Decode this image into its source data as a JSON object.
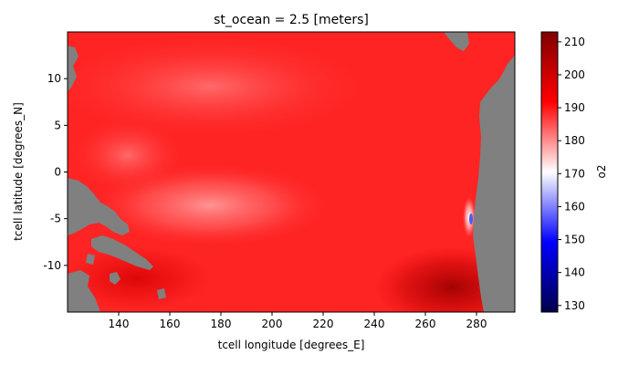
{
  "chart_data": {
    "type": "heatmap",
    "title": "st_ocean = 2.5 [meters]",
    "xlabel": "tcell longitude [degrees_E]",
    "ylabel": "tcell latitude [degrees_N]",
    "xlim": [
      120,
      295
    ],
    "ylim": [
      -15,
      15
    ],
    "x_ticks": [
      140,
      160,
      180,
      200,
      220,
      240,
      260,
      280
    ],
    "y_ticks": [
      -10,
      -5,
      0,
      5,
      10
    ],
    "colorbar": {
      "label": "o2",
      "range": [
        128,
        213
      ],
      "ticks": [
        130,
        140,
        150,
        160,
        170,
        180,
        190,
        200,
        210
      ],
      "colormap": "seismic",
      "center": 170
    },
    "land_color": "#808080",
    "field_description": "Surface dissolved oxygen; mostly 185-200, lower (~178-182) band near 155-200E, 0 to -8 lat; higher (~205-210) in far south-east near 260-280E; dips below 150 near the coast at ~280E, -5 lat"
  }
}
